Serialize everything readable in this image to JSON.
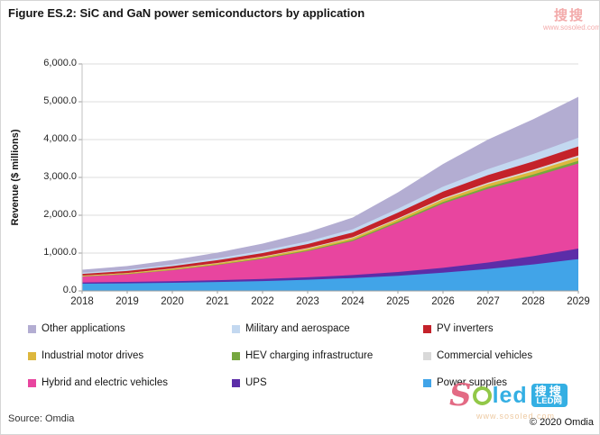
{
  "title": "Figure ES.2: SiC and GaN power semiconductors by application",
  "source_note": "Source: Omdia",
  "copyright": "© 2020 Omdia",
  "watermark": {
    "top_cn": "搜搜",
    "top_url": "www.sosoled.com",
    "logo_s": "S",
    "logo_led": "led",
    "box_line1": "搜搜",
    "box_line2": "LED网",
    "bottom_url": "www.sosoled.com"
  },
  "chart_data": {
    "type": "area",
    "stacked": true,
    "title": "Figure ES.2: SiC and GaN power semiconductors by application",
    "xlabel": "",
    "ylabel": "Revenue ($ millions)",
    "ylim": [
      0,
      6000
    ],
    "ytick_step": 1000,
    "ytick_labels_top_to_bottom": [
      "6,000.0",
      "5,000.0",
      "4,000.0",
      "3,000.0",
      "2,000.0",
      "1,000.0",
      "0.0"
    ],
    "grid": true,
    "legend_position": "bottom",
    "categories": [
      "2018",
      "2019",
      "2020",
      "2021",
      "2022",
      "2023",
      "2024",
      "2025",
      "2026",
      "2027",
      "2028",
      "2029"
    ],
    "series_bottom_to_top": [
      {
        "name": "Power supplies",
        "color": "#41a4e8",
        "values": [
          190,
          200,
          215,
          235,
          260,
          295,
          340,
          400,
          480,
          580,
          700,
          840
        ]
      },
      {
        "name": "UPS",
        "color": "#5c2da8",
        "values": [
          35,
          38,
          42,
          48,
          55,
          65,
          80,
          100,
          130,
          170,
          220,
          280
        ]
      },
      {
        "name": "Hybrid and electric vehicles",
        "color": "#e8459f",
        "values": [
          150,
          200,
          290,
          400,
          530,
          690,
          900,
          1300,
          1700,
          1950,
          2100,
          2250
        ]
      },
      {
        "name": "HEV charging infrastructure",
        "color": "#76a73f",
        "values": [
          5,
          7,
          10,
          13,
          17,
          22,
          28,
          35,
          42,
          50,
          58,
          68
        ]
      },
      {
        "name": "Industrial motor drives",
        "color": "#ddb73d",
        "values": [
          20,
          23,
          27,
          32,
          38,
          45,
          52,
          60,
          68,
          76,
          84,
          92
        ]
      },
      {
        "name": "Commercial vehicles",
        "color": "#d9d9d9",
        "values": [
          5,
          6,
          8,
          10,
          13,
          16,
          20,
          25,
          30,
          36,
          42,
          50
        ]
      },
      {
        "name": "PV inverters",
        "color": "#c4222a",
        "values": [
          45,
          52,
          62,
          74,
          88,
          105,
          125,
          150,
          175,
          200,
          220,
          240
        ]
      },
      {
        "name": "Military and aerospace",
        "color": "#c3d8f0",
        "values": [
          30,
          35,
          42,
          50,
          60,
          72,
          86,
          105,
          130,
          160,
          195,
          230
        ]
      },
      {
        "name": "Other applications",
        "color": "#b3add2",
        "values": [
          80,
          95,
          120,
          150,
          190,
          240,
          310,
          430,
          600,
          780,
          920,
          1080
        ]
      }
    ],
    "approx_totals": [
      560,
      656,
      816,
      1012,
      1251,
      1550,
      1941,
      2605,
      3355,
      4002,
      4539,
      5130
    ]
  },
  "legend": {
    "items": [
      {
        "label": "Other applications",
        "color": "#b3add2"
      },
      {
        "label": "Military and aerospace",
        "color": "#c3d8f0"
      },
      {
        "label": "PV inverters",
        "color": "#c4222a"
      },
      {
        "label": "Industrial motor drives",
        "color": "#ddb73d"
      },
      {
        "label": "HEV charging infrastructure",
        "color": "#76a73f"
      },
      {
        "label": "Commercial vehicles",
        "color": "#d9d9d9"
      },
      {
        "label": "Hybrid and electric vehicles",
        "color": "#e8459f"
      },
      {
        "label": "UPS",
        "color": "#5c2da8"
      },
      {
        "label": "Power supplies",
        "color": "#41a4e8"
      }
    ]
  }
}
